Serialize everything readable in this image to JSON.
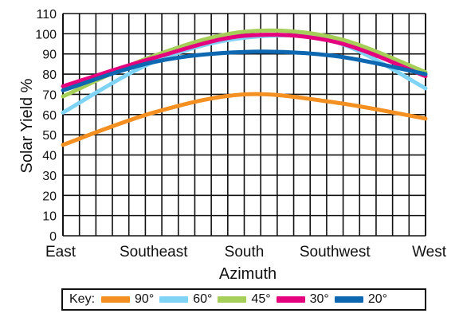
{
  "chart_data": {
    "type": "line",
    "xlabel": "Azimuth",
    "ylabel": "Solar Yield %",
    "categories": [
      "East",
      "Southeast",
      "South",
      "Southwest",
      "West"
    ],
    "ylim": [
      0,
      110
    ],
    "yticks": [
      0,
      10,
      20,
      30,
      40,
      50,
      60,
      70,
      80,
      90,
      100,
      110
    ],
    "grid": true,
    "legend_position": "bottom",
    "legend_title": "Key:",
    "x": [
      0,
      0.25,
      0.5,
      0.75,
      1
    ],
    "series": [
      {
        "name": "90°",
        "color": "#f39021",
        "values": [
          45,
          61,
          70,
          66,
          58
        ]
      },
      {
        "name": "60°",
        "color": "#7fd3f5",
        "values": [
          61,
          86,
          98,
          96,
          73
        ]
      },
      {
        "name": "45°",
        "color": "#a6cf5a",
        "values": [
          69,
          89,
          101,
          98,
          81
        ]
      },
      {
        "name": "30°",
        "color": "#e5007e",
        "values": [
          74,
          88,
          99,
          96,
          79
        ]
      },
      {
        "name": "20°",
        "color": "#0d68b1",
        "values": [
          72,
          86,
          91,
          89,
          80
        ]
      }
    ]
  }
}
